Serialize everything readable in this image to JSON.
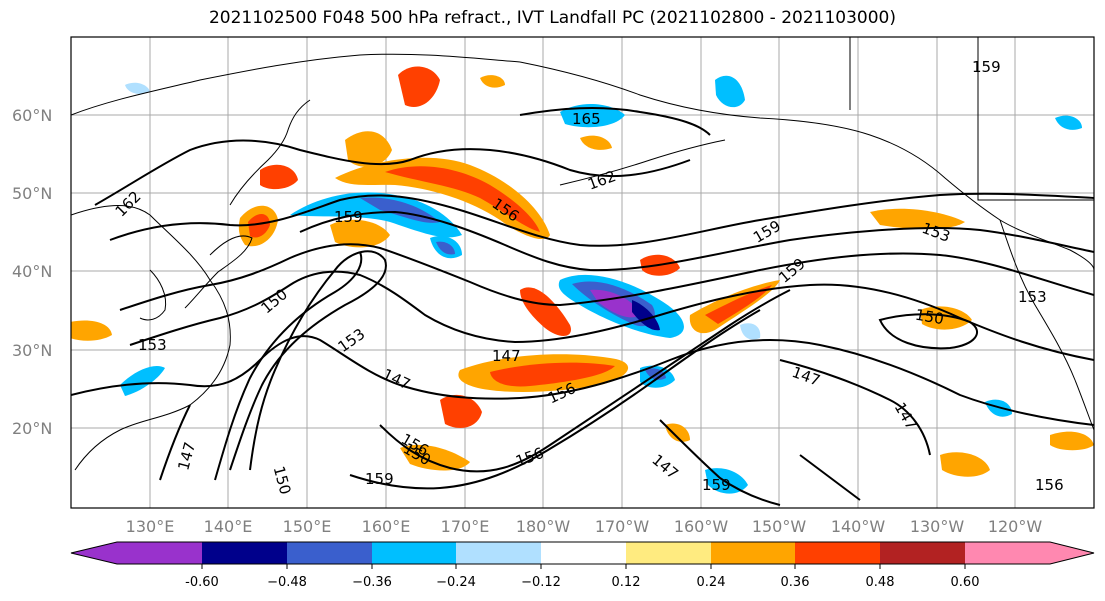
{
  "title": "2021102500 F048 500 hPa refract., IVT Landfall PC (2021102800 - 2021103000)",
  "map": {
    "lat_labels": [
      "60°N",
      "50°N",
      "40°N",
      "30°N",
      "20°N"
    ],
    "lon_labels": [
      "130°E",
      "140°E",
      "150°E",
      "160°E",
      "170°E",
      "180°W",
      "170°W",
      "160°W",
      "150°W",
      "140°W",
      "130°W",
      "120°W"
    ],
    "contour_labels": [
      "165",
      "162",
      "162",
      "159",
      "156",
      "159",
      "159",
      "153",
      "153",
      "150",
      "153",
      "153",
      "150",
      "147",
      "147",
      "156",
      "147",
      "147",
      "156",
      "156",
      "150",
      "159",
      "147",
      "150",
      "159",
      "147",
      "159",
      "156"
    ]
  },
  "colorbar": {
    "ticks": [
      "-0.60",
      "−0.48",
      "−0.36",
      "−0.24",
      "−0.12",
      "0.12",
      "0.24",
      "0.36",
      "0.48",
      "0.60"
    ],
    "colors": {
      "under": "#9932cc",
      "neg_060": "#00008b",
      "neg_048": "#3a5fcd",
      "neg_036": "#00bfff",
      "neg_024": "#b0e0ff",
      "neutral": "#ffffff",
      "pos_012": "#ffeb80",
      "pos_024": "#ffa500",
      "pos_036": "#ff4000",
      "pos_048": "#b22222",
      "over": "#ff88b0"
    }
  }
}
